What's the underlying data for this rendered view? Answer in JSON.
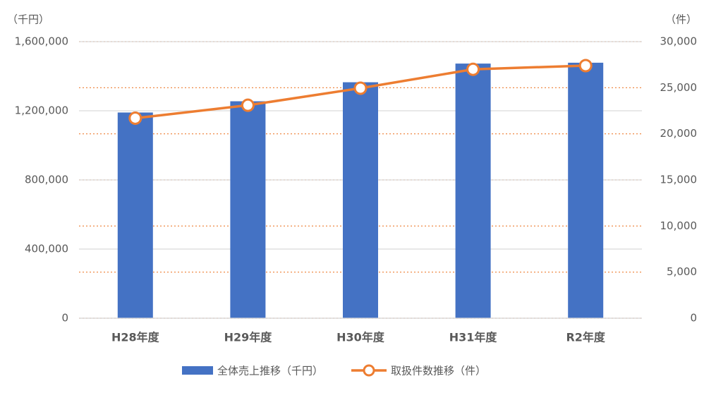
{
  "chart_data": {
    "type": "combo",
    "y_unit_label": "（千円）",
    "y2_unit_label": "（件）",
    "categories": [
      "H28年度",
      "H29年度",
      "H30年度",
      "H31年度",
      "R2年度"
    ],
    "series": [
      {
        "name": "全体売上推移（千円）",
        "type": "bar",
        "color": "#4472c4",
        "values": [
          1190000,
          1255000,
          1365000,
          1473000,
          1478000
        ]
      },
      {
        "name": "取扱件数推移（件）",
        "type": "line",
        "axis": "y2",
        "color": "#ed7d31",
        "values": [
          21700,
          23100,
          24950,
          27000,
          27400
        ]
      }
    ],
    "ylim": [
      0,
      1600000
    ],
    "yticks": [
      0,
      {
        "value": 400000,
        "label": "400,000"
      },
      {
        "value": 800000,
        "label": "800,000"
      },
      {
        "value": 1200000,
        "label": "1,200,000"
      },
      {
        "value": 1600000,
        "label": "1,600,000"
      }
    ],
    "y2lim": [
      0,
      30000
    ],
    "y2ticks": [
      0,
      {
        "value": 5000,
        "label": "5,000"
      },
      {
        "value": 10000,
        "label": "10,000"
      },
      {
        "value": 15000,
        "label": "15,000"
      },
      {
        "value": 20000,
        "label": "20,000"
      },
      {
        "value": 25000,
        "label": "25,000"
      },
      {
        "value": 30000,
        "label": "30,000"
      }
    ],
    "grid": true,
    "y2grid": true,
    "legend": "bottom"
  }
}
